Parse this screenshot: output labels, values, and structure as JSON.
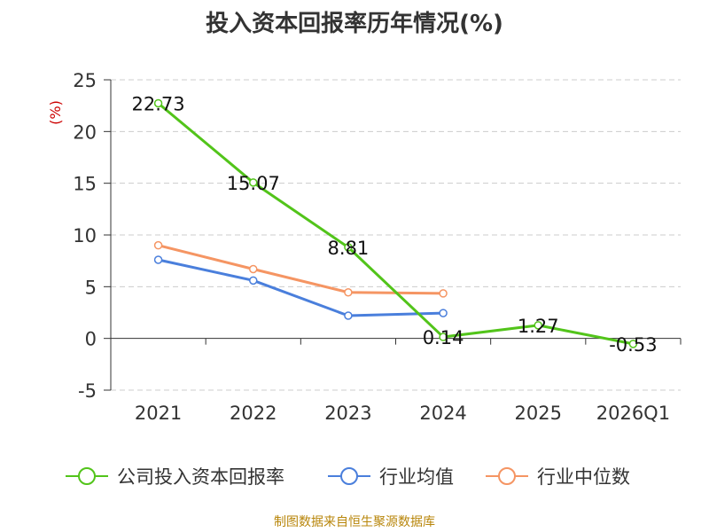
{
  "chart_data": {
    "type": "line",
    "title": "投入资本回报率历年情况(%)",
    "ylabel": "(%)",
    "categories": [
      "2021",
      "2022",
      "2023",
      "2024",
      "2025",
      "2026Q1"
    ],
    "ylim": [
      -5,
      25
    ],
    "yticks": [
      -5,
      0,
      5,
      10,
      15,
      20,
      25
    ],
    "grid": true,
    "legend_position": "bottom",
    "series": [
      {
        "name": "公司投入资本回报率",
        "color": "#52c41a",
        "values": [
          22.73,
          15.07,
          8.81,
          0.14,
          1.27,
          -0.53
        ],
        "labels": true
      },
      {
        "name": "行业均值",
        "color": "#4a7fdc",
        "values": [
          7.6,
          5.6,
          2.2,
          2.45,
          null,
          null
        ],
        "labels": false
      },
      {
        "name": "行业中位数",
        "color": "#f59563",
        "values": [
          9.0,
          6.7,
          4.45,
          4.35,
          null,
          null
        ],
        "labels": false
      }
    ]
  },
  "source": "制图数据来自恒生聚源数据库"
}
